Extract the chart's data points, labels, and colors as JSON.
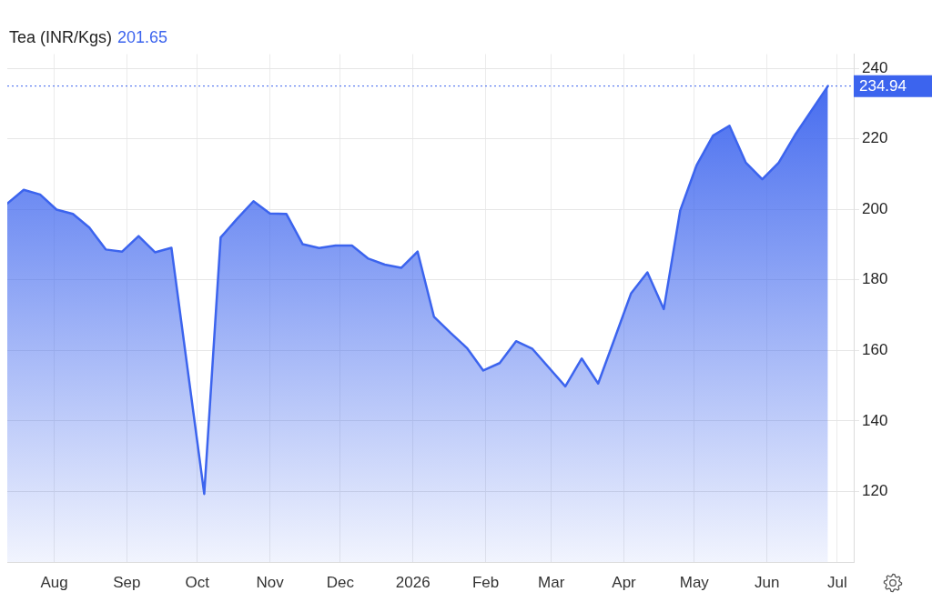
{
  "chart_data": {
    "type": "area",
    "title": "Tea (INR/Kgs)",
    "annotations": [
      "201.65"
    ],
    "x": [
      "2025-07-12",
      "2025-07-19",
      "2025-07-26",
      "2025-08-02",
      "2025-08-09",
      "2025-08-16",
      "2025-08-23",
      "2025-08-30",
      "2025-09-06",
      "2025-09-13",
      "2025-09-20",
      "2025-10-04",
      "2025-10-11",
      "2025-10-18",
      "2025-10-25",
      "2025-11-01",
      "2025-11-08",
      "2025-11-15",
      "2025-11-22",
      "2025-11-29",
      "2025-12-06",
      "2025-12-13",
      "2025-12-20",
      "2025-12-27",
      "2026-01-03",
      "2026-01-10",
      "2026-01-17",
      "2026-01-24",
      "2026-01-31",
      "2026-02-07",
      "2026-02-14",
      "2026-02-21",
      "2026-03-07",
      "2026-03-14",
      "2026-03-21",
      "2026-03-28",
      "2026-04-04",
      "2026-04-11",
      "2026-04-18",
      "2026-04-25",
      "2026-05-02",
      "2026-05-09",
      "2026-05-16",
      "2026-05-23",
      "2026-05-30",
      "2026-06-06",
      "2026-06-13",
      "2026-06-20",
      "2026-06-27"
    ],
    "series": [
      {
        "color": "#3c64ee",
        "values": [
          201.65,
          205.5,
          204.2,
          199.9,
          198.7,
          194.8,
          188.6,
          188.0,
          192.4,
          187.8,
          189.1,
          119.3,
          192.0,
          197.3,
          202.3,
          198.8,
          198.7,
          190.1,
          189.0,
          189.7,
          189.7,
          186.0,
          184.3,
          183.4,
          188.0,
          169.5,
          165.0,
          160.7,
          154.3,
          156.4,
          162.6,
          160.4,
          149.8,
          157.7,
          150.6,
          163.3,
          176.1,
          182.1,
          171.7,
          199.7,
          212.5,
          220.9,
          223.7,
          213.2,
          208.5,
          213.2,
          221.1,
          228.0,
          234.94
        ]
      }
    ],
    "xlim": [
      "2025-07-12",
      "2026-07-08"
    ],
    "xticks": [
      {
        "value": "2025-08-01",
        "label": "Aug"
      },
      {
        "value": "2025-09-01",
        "label": "Sep"
      },
      {
        "value": "2025-10-01",
        "label": "Oct"
      },
      {
        "value": "2025-11-01",
        "label": "Nov"
      },
      {
        "value": "2025-12-01",
        "label": "Dec"
      },
      {
        "value": "2026-01-01",
        "label": "2026"
      },
      {
        "value": "2026-02-01",
        "label": "Feb"
      },
      {
        "value": "2026-03-01",
        "label": "Mar"
      },
      {
        "value": "2026-04-01",
        "label": "Apr"
      },
      {
        "value": "2026-05-01",
        "label": "May"
      },
      {
        "value": "2026-06-01",
        "label": "Jun"
      },
      {
        "value": "2026-07-01",
        "label": "Jul"
      }
    ],
    "ylim": [
      100,
      244
    ],
    "yticks": [
      120,
      140,
      160,
      180,
      200,
      220,
      240
    ],
    "grid": true,
    "legend": false,
    "marker": "none",
    "ref_lines": [
      {
        "axis": "y",
        "value": 234.94,
        "label": "234.94",
        "line_style": "dotted",
        "color": "#3c64ee"
      }
    ]
  }
}
